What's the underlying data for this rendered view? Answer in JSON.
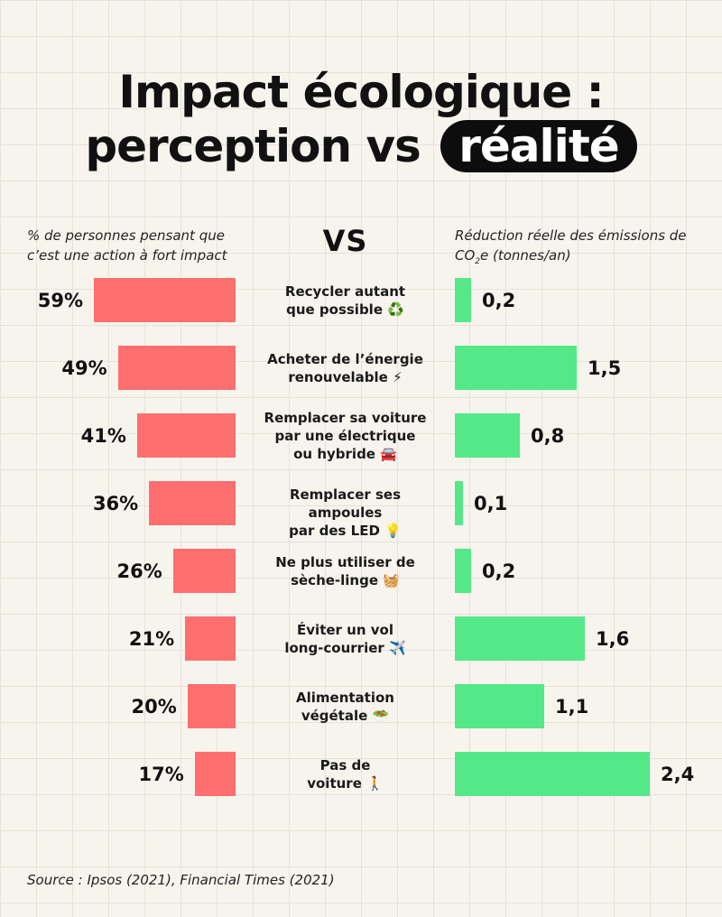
{
  "title_line1": "Impact écologique :",
  "title_line2_prefix": "perception vs",
  "title_line2_highlight": "réalité",
  "vs_label": "VS",
  "left_header": "% de personnes pensant que c’est une action à fort impact",
  "right_header_prefix": "Réduction réelle des émissions de CO",
  "right_header_sub": "2",
  "right_header_suffix": "e (tonnes/an)",
  "source": "Source : Ipsos (2021), Financial Times (2021)",
  "colors": {
    "perception": "#ff6f6f",
    "reality": "#55e888",
    "background": "#f7f4ee"
  },
  "chart_data": {
    "type": "bar",
    "categories": [
      "Recycler autant que possible ♻️",
      "Acheter de l’énergie renouvelable ⚡",
      "Remplacer sa voiture par une électrique ou hybride 🚘",
      "Remplacer ses ampoules par des LED 💡",
      "Ne plus utiliser de sèche-linge 🧺",
      "Éviter un vol long-courrier ✈️",
      "Alimentation végétale 🥗",
      "Pas de voiture 🚶"
    ],
    "category_lines": [
      [
        "Recycler autant",
        "que possible ♻️"
      ],
      [
        "Acheter de l’énergie",
        "renouvelable ⚡"
      ],
      [
        "Remplacer sa voiture",
        "par une électrique",
        "ou hybride 🚘"
      ],
      [
        "Remplacer ses ampoules",
        "par des LED 💡"
      ],
      [
        "Ne plus utiliser de",
        "sèche-linge 🧺"
      ],
      [
        "Éviter un vol",
        "long-courrier ✈️"
      ],
      [
        "Alimentation",
        "végétale 🥗"
      ],
      [
        "Pas de",
        "voiture 🚶"
      ]
    ],
    "series": [
      {
        "name": "% de personnes pensant que c’est une action à fort impact",
        "values": [
          59,
          49,
          41,
          36,
          26,
          21,
          20,
          17
        ],
        "labels": [
          "59%",
          "49%",
          "41%",
          "36%",
          "26%",
          "21%",
          "20%",
          "17%"
        ]
      },
      {
        "name": "Réduction réelle des émissions de CO2e (tonnes/an)",
        "values": [
          0.2,
          1.5,
          0.8,
          0.1,
          0.2,
          1.6,
          1.1,
          2.4
        ],
        "labels": [
          "0,2",
          "1,5",
          "0,8",
          "0,1",
          "0,2",
          "1,6",
          "1,1",
          "2,4"
        ]
      }
    ],
    "title": "Impact écologique : perception vs réalité"
  }
}
